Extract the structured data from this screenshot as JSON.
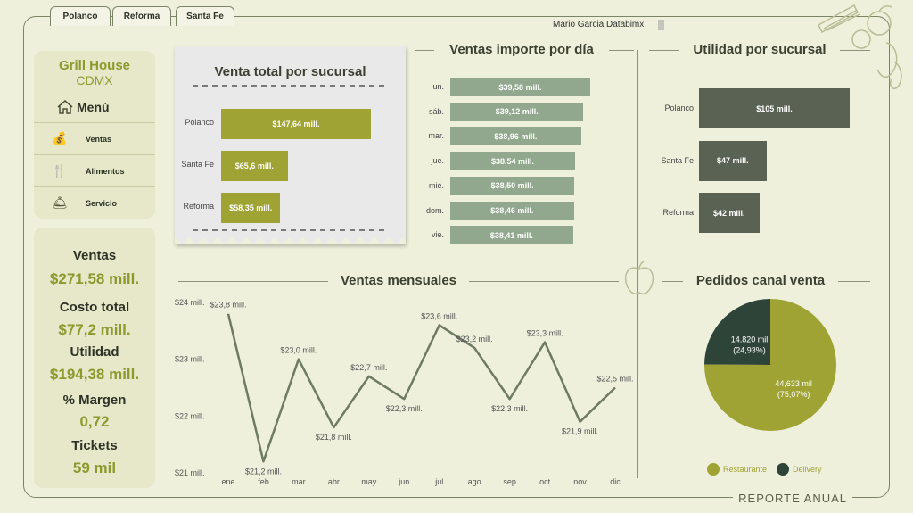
{
  "tabs": [
    "Polanco",
    "Reforma",
    "Santa Fe"
  ],
  "user": "Mario Garcia Databimx",
  "footer": "REPORTE ANUAL",
  "brand": {
    "name": "Grill House",
    "city": "CDMX"
  },
  "menu": {
    "title": "Menú",
    "items": [
      {
        "label": "Ventas",
        "icon": "money-bag-icon"
      },
      {
        "label": "Alimentos",
        "icon": "utensils-icon"
      },
      {
        "label": "Servicio",
        "icon": "waiter-icon"
      }
    ]
  },
  "kpis": [
    {
      "label": "Ventas",
      "value": "$271,58 mill."
    },
    {
      "label": "Costo total",
      "value": "$77,2 mill."
    },
    {
      "label": "Utilidad",
      "value": "$194,38 mill."
    },
    {
      "label": "% Margen",
      "value": "0,72"
    },
    {
      "label": "Tickets",
      "value": "59 mil"
    }
  ],
  "colors": {
    "olive": "#9ea333",
    "sage": "#92a88e",
    "dark": "#596253",
    "deep": "#2f4439",
    "bg": "#eef0dc"
  },
  "chart_data": [
    {
      "type": "bar",
      "orientation": "horizontal",
      "title": "Venta total por sucursal",
      "categories": [
        "Polanco",
        "Santa Fe",
        "Reforma"
      ],
      "values": [
        147.64,
        65.6,
        58.35
      ],
      "labels": [
        "$147,64 mill.",
        "$65,6 mill.",
        "$58,35 mill."
      ]
    },
    {
      "type": "bar",
      "orientation": "horizontal",
      "title": "Ventas importe por día",
      "categories": [
        "lun.",
        "sáb.",
        "mar.",
        "jue.",
        "mié.",
        "dom.",
        "vie."
      ],
      "values": [
        39.58,
        39.12,
        38.96,
        38.54,
        38.5,
        38.46,
        38.41
      ],
      "labels": [
        "$39,58 mill.",
        "$39,12 mill.",
        "$38,96 mill.",
        "$38,54 mill.",
        "$38,50 mill.",
        "$38,46 mill.",
        "$38,41 mill."
      ]
    },
    {
      "type": "bar",
      "orientation": "horizontal",
      "title": "Utilidad por sucursal",
      "categories": [
        "Polanco",
        "Santa Fe",
        "Reforma"
      ],
      "values": [
        105,
        47,
        42
      ],
      "labels": [
        "$105 mill.",
        "$47 mill.",
        "$42 mill."
      ]
    },
    {
      "type": "line",
      "title": "Ventas mensuales",
      "x": [
        "ene",
        "feb",
        "mar",
        "abr",
        "may",
        "jun",
        "jul",
        "ago",
        "sep",
        "oct",
        "nov",
        "dic"
      ],
      "values": [
        23.8,
        21.2,
        23.0,
        21.8,
        22.7,
        22.3,
        23.6,
        23.2,
        22.3,
        23.3,
        21.9,
        22.5
      ],
      "labels": [
        "$23,8 mill.",
        "$21,2 mill.",
        "$23,0 mill.",
        "$21,8 mill.",
        "$22,7 mill.",
        "$22,3 mill.",
        "$23,6 mill.",
        "$23,2 mill.",
        "$22,3 mill.",
        "$23,3 mill.",
        "$21,9 mill.",
        "$22,5 mill."
      ],
      "yticks": [
        "$21 mill.",
        "$22 mill.",
        "$23 mill.",
        "$24 mill."
      ],
      "ylim": [
        21,
        24
      ]
    },
    {
      "type": "pie",
      "title": "Pedidos canal venta",
      "slices": [
        {
          "name": "Restaurante",
          "value": 44633,
          "label": "44,633 mil",
          "pct": "(75,07%)"
        },
        {
          "name": "Delivery",
          "value": 14820,
          "label": "14,820 mil",
          "pct": "(24,93%)"
        }
      ]
    }
  ]
}
